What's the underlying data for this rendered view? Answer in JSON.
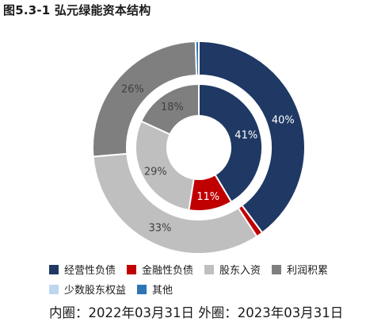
{
  "title": "图5.3-1 弘元绿能资本结构",
  "caption": "内圈：2022年03月31日 外圈：2023年03月31日",
  "legend": [
    {
      "label": "经营性负债",
      "color": "#1f3864"
    },
    {
      "label": "金融性负债",
      "color": "#c00000"
    },
    {
      "label": "股东入资",
      "color": "#bfbfbf"
    },
    {
      "label": "利润积累",
      "color": "#7f7f7f"
    },
    {
      "label": "少数股东权益",
      "color": "#bdd7ee"
    },
    {
      "label": "其他",
      "color": "#2e75b6"
    }
  ],
  "chart_data": {
    "type": "pie",
    "title": "图5.3-1 弘元绿能资本结构",
    "categories": [
      "经营性负债",
      "金融性负债",
      "股东入资",
      "利润积累",
      "少数股东权益",
      "其他"
    ],
    "colors": [
      "#1f3864",
      "#c00000",
      "#bfbfbf",
      "#7f7f7f",
      "#bdd7ee",
      "#2e75b6"
    ],
    "series": [
      {
        "name": "外圈：2023年03月31日",
        "values": [
          40,
          1,
          33,
          26,
          0,
          0.5
        ],
        "labels": [
          "40%",
          "",
          "33%",
          "26%",
          "",
          ""
        ]
      },
      {
        "name": "内圈：2022年03月31日",
        "values": [
          41,
          11,
          29,
          18,
          0,
          0
        ],
        "labels": [
          "41%",
          "11%",
          "29%",
          "18%",
          "",
          ""
        ]
      }
    ]
  }
}
